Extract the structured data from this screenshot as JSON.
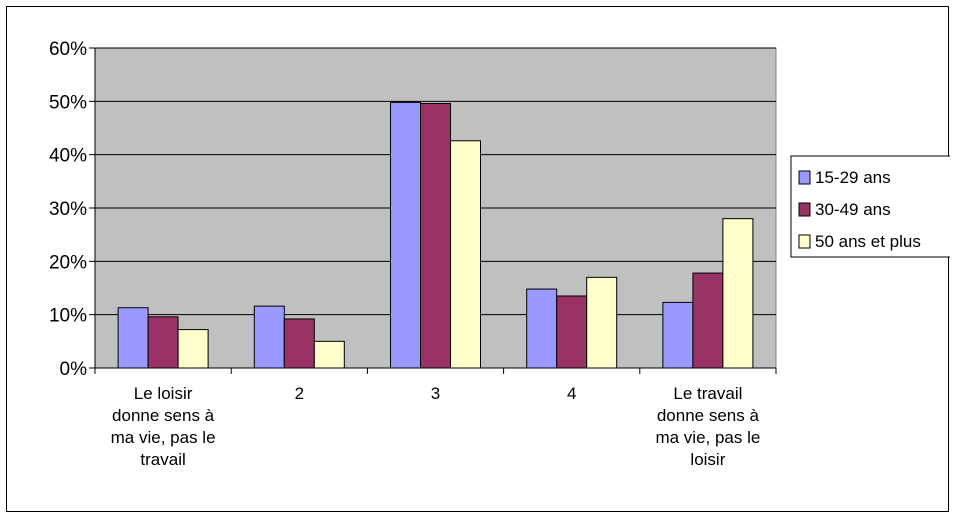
{
  "chart_data": {
    "type": "bar",
    "categories": [
      "Le loisir donne sens à ma vie, pas le travail",
      "2",
      "3",
      "4",
      "Le travail donne sens à ma vie, pas le loisir"
    ],
    "category_lines": [
      [
        "Le loisir",
        "donne sens à",
        "ma vie, pas le",
        "travail"
      ],
      [
        "2"
      ],
      [
        "3"
      ],
      [
        "4"
      ],
      [
        "Le travail",
        "donne sens à",
        "ma vie, pas le",
        "loisir"
      ]
    ],
    "series": [
      {
        "name": "15-29 ans",
        "color": "#9999FF",
        "values": [
          11.3,
          11.6,
          49.8,
          14.8,
          12.3
        ]
      },
      {
        "name": "30-49 ans",
        "color": "#993366",
        "values": [
          9.6,
          9.2,
          49.6,
          13.5,
          17.8
        ]
      },
      {
        "name": "50 ans et plus",
        "color": "#FFFFCC",
        "values": [
          7.2,
          5.0,
          42.6,
          17.0,
          28.0
        ]
      }
    ],
    "y_ticks": [
      "0%",
      "10%",
      "20%",
      "30%",
      "40%",
      "50%",
      "60%"
    ],
    "ylim": [
      0,
      60
    ],
    "grid": true,
    "legend_position": "right",
    "plot_background": "#C0C0C0",
    "title": "",
    "xlabel": "",
    "ylabel": ""
  }
}
